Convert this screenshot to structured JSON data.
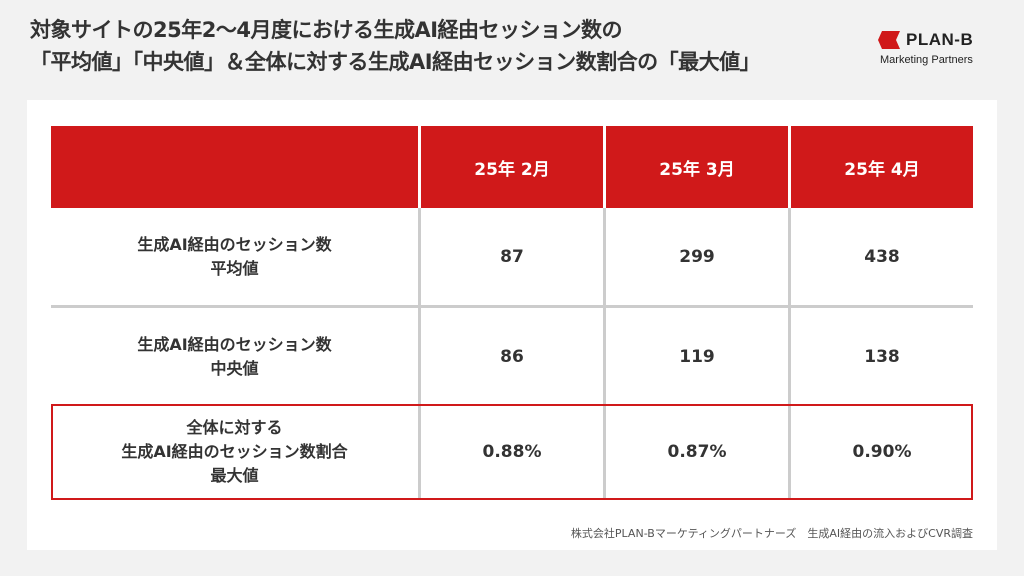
{
  "title": {
    "line1": "対象サイトの25年2〜4月度における生成AI経由セッション数の",
    "line2": "「平均値」「中央値」＆全体に対する生成AI経由セッション数割合の「最大値」"
  },
  "logo": {
    "name": "PLAN-B",
    "sub": "Marketing Partners"
  },
  "table": {
    "headers": [
      "",
      "25年 2月",
      "25年 3月",
      "25年 4月"
    ],
    "rows": [
      {
        "label_line1": "生成AI経由のセッション数",
        "label_line2": "平均値",
        "label_line3": "",
        "values": [
          "87",
          "299",
          "438"
        ]
      },
      {
        "label_line1": "生成AI経由のセッション数",
        "label_line2": "中央値",
        "label_line3": "",
        "values": [
          "86",
          "119",
          "138"
        ]
      },
      {
        "label_line1": "全体に対する",
        "label_line2": "生成AI経由のセッション数割合",
        "label_line3": "最大値",
        "values": [
          "0.88%",
          "0.87%",
          "0.90%"
        ]
      }
    ]
  },
  "source": "株式会社PLAN-Bマーケティングパートナーズ　生成AI経由の流入およびCVR調査",
  "colors": {
    "accent": "#d0191a",
    "background": "#f2f2f2",
    "panel": "#ffffff",
    "grid": "#cccccc",
    "text": "#333333"
  }
}
